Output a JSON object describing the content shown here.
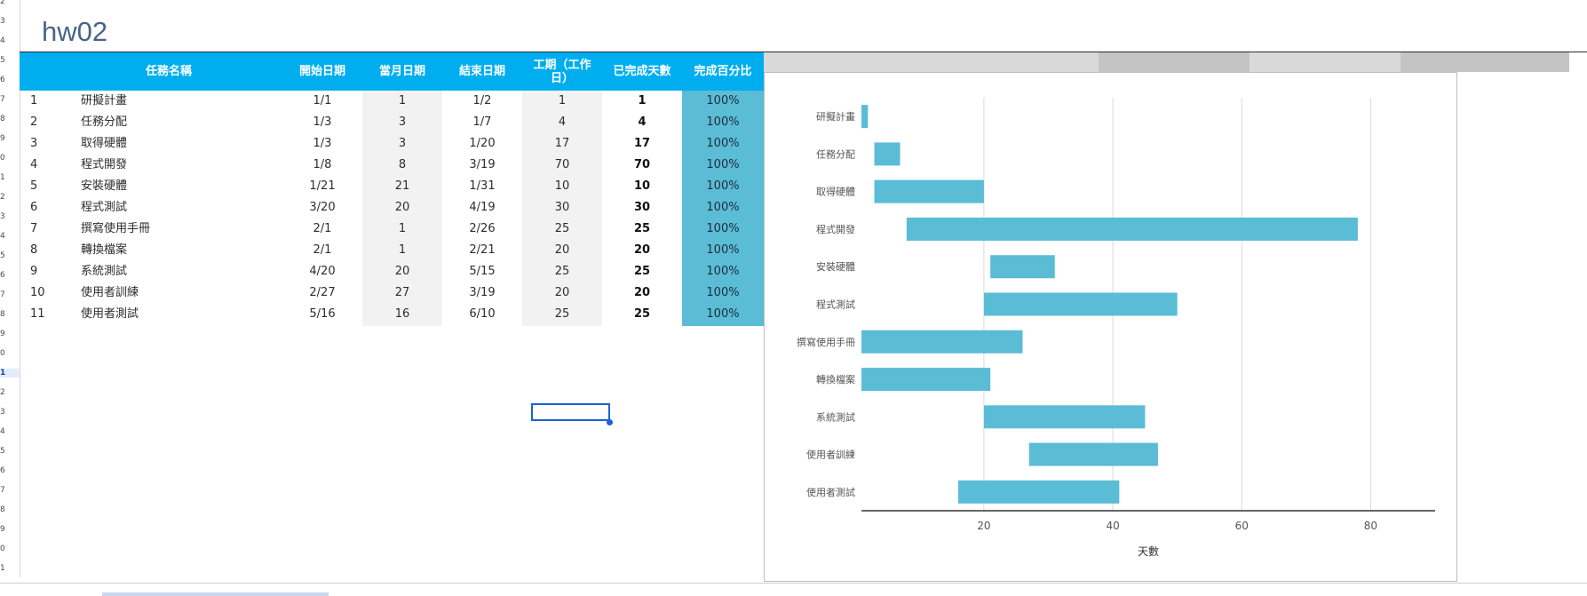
{
  "sheet": {
    "title": "hw02",
    "row_numbers": [
      "2",
      "3",
      "4",
      "5",
      "6",
      "7",
      "8",
      "9",
      "0",
      "1",
      "2",
      "3",
      "4",
      "5",
      "6",
      "7",
      "8",
      "9",
      "0",
      "1",
      "2",
      "3",
      "4",
      "5",
      "6",
      "7",
      "8",
      "9",
      "0",
      "1"
    ],
    "active_row": "1"
  },
  "table": {
    "headers": {
      "task": "任務名稱",
      "start": "開始日期",
      "day": "當月日期",
      "end": "結束日期",
      "duration": "工期（工作日）",
      "done": "已完成天數",
      "pct": "完成百分比"
    },
    "rows": [
      {
        "no": "1",
        "task": "研擬計畫",
        "start": "1/1",
        "day": "1",
        "end": "1/2",
        "duration": "1",
        "done": "1",
        "pct": "100%"
      },
      {
        "no": "2",
        "task": "任務分配",
        "start": "1/3",
        "day": "3",
        "end": "1/7",
        "duration": "4",
        "done": "4",
        "pct": "100%"
      },
      {
        "no": "3",
        "task": "取得硬體",
        "start": "1/3",
        "day": "3",
        "end": "1/20",
        "duration": "17",
        "done": "17",
        "pct": "100%"
      },
      {
        "no": "4",
        "task": "程式開發",
        "start": "1/8",
        "day": "8",
        "end": "3/19",
        "duration": "70",
        "done": "70",
        "pct": "100%"
      },
      {
        "no": "5",
        "task": "安裝硬體",
        "start": "1/21",
        "day": "21",
        "end": "1/31",
        "duration": "10",
        "done": "10",
        "pct": "100%"
      },
      {
        "no": "6",
        "task": "程式測試",
        "start": "3/20",
        "day": "20",
        "end": "4/19",
        "duration": "30",
        "done": "30",
        "pct": "100%"
      },
      {
        "no": "7",
        "task": "撰寫使用手冊",
        "start": "2/1",
        "day": "1",
        "end": "2/26",
        "duration": "25",
        "done": "25",
        "pct": "100%"
      },
      {
        "no": "8",
        "task": "轉換檔案",
        "start": "2/1",
        "day": "1",
        "end": "2/21",
        "duration": "20",
        "done": "20",
        "pct": "100%"
      },
      {
        "no": "9",
        "task": "系統測試",
        "start": "4/20",
        "day": "20",
        "end": "5/15",
        "duration": "25",
        "done": "25",
        "pct": "100%"
      },
      {
        "no": "10",
        "task": "使用者訓練",
        "start": "2/27",
        "day": "27",
        "end": "3/19",
        "duration": "20",
        "done": "20",
        "pct": "100%"
      },
      {
        "no": "11",
        "task": "使用者測試",
        "start": "5/16",
        "day": "16",
        "end": "6/10",
        "duration": "25",
        "done": "25",
        "pct": "100%"
      }
    ]
  },
  "colors": {
    "header_bg": "#00aeef",
    "bar": "#5bbcd6",
    "pct_bg": "#5bbcd6",
    "alt_col_bg": "#f2f2f2",
    "grid": "#d9d9d9"
  },
  "chart_data": {
    "type": "bar",
    "orientation": "horizontal",
    "stacked_gantt": true,
    "categories": [
      "研擬計畫",
      "任務分配",
      "取得硬體",
      "程式開發",
      "安裝硬體",
      "程式測試",
      "撰寫使用手冊",
      "轉換檔案",
      "系統測試",
      "使用者訓練",
      "使用者測試"
    ],
    "starts": [
      1,
      3,
      3,
      8,
      21,
      20,
      1,
      1,
      20,
      27,
      16
    ],
    "durations": [
      1,
      4,
      17,
      70,
      10,
      30,
      25,
      20,
      25,
      20,
      25
    ],
    "x_ticks": [
      "20",
      "40",
      "60",
      "80"
    ],
    "xlim": [
      1,
      90
    ],
    "xlabel": "天數",
    "ylabel": "",
    "title": "",
    "grid": true
  }
}
